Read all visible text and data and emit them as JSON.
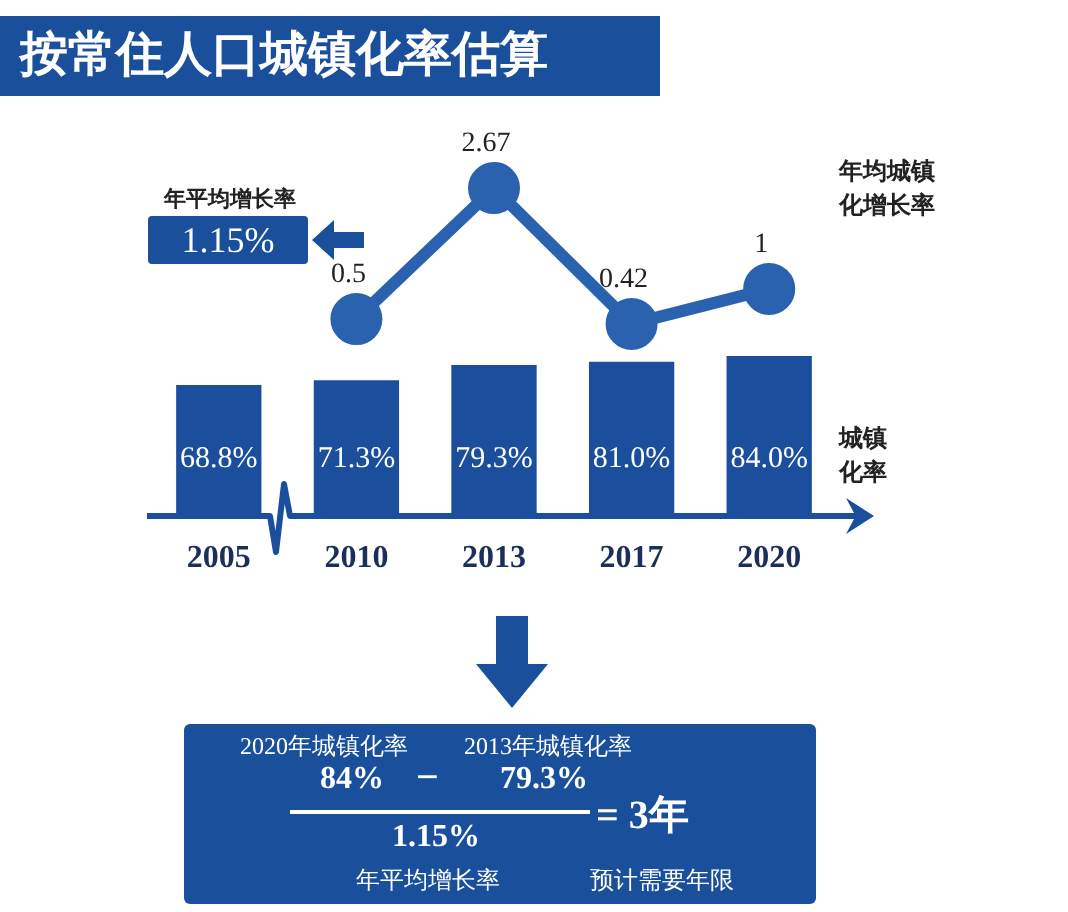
{
  "chart_data": [
    {
      "type": "line",
      "title": "按常住人口城镇化率估算",
      "categories": [
        "2005",
        "2010",
        "2013",
        "2017",
        "2020"
      ],
      "series": [
        {
          "name": "年均城镇化增长率",
          "color": "#2a62b0",
          "values": [
            null,
            0.5,
            2.67,
            0.42,
            1
          ],
          "value_labels": [
            null,
            "0.5",
            "2.67",
            "0.42",
            "1"
          ]
        }
      ],
      "marker": "circle",
      "tick_labels": false,
      "grid": false,
      "legend": false,
      "annotations": [
        "年平均增长率",
        "1.15%"
      ]
    },
    {
      "type": "bar",
      "categories": [
        "2005",
        "2010",
        "2013",
        "2017",
        "2020"
      ],
      "series": [
        {
          "name": "城镇化率",
          "color": "#1b4f9e",
          "values": [
            68.8,
            71.3,
            79.3,
            81.0,
            84.0
          ],
          "value_labels": [
            "68.8%",
            "71.3%",
            "79.3%",
            "81.0%",
            "84.0%"
          ]
        }
      ],
      "tick_labels": "x",
      "grid": false,
      "legend": false,
      "annotations": [
        "2020年城镇化率",
        "2013年城镇化率",
        "84%",
        "−",
        "79.3%",
        "1.15%",
        "= 3年",
        "年平均增长率",
        "预计需要年限"
      ]
    }
  ]
}
